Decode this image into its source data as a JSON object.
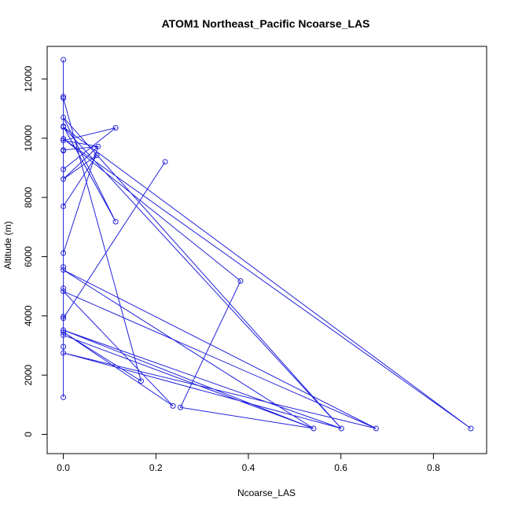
{
  "chart_data": {
    "type": "line",
    "title": "ATOM1 Northeast_Pacific Ncoarse_LAS",
    "xlabel": "Ncoarse_LAS",
    "ylabel": "Altitude (m)",
    "xlim": [
      -0.035,
      0.915
    ],
    "ylim": [
      -650,
      13100
    ],
    "x_ticks": [
      0.0,
      0.2,
      0.4,
      0.6,
      0.8
    ],
    "x_tick_labels": [
      "0.0",
      "0.2",
      "0.4",
      "0.6",
      "0.8"
    ],
    "y_ticks": [
      0,
      2000,
      4000,
      6000,
      8000,
      10000,
      12000
    ],
    "y_tick_labels": [
      "0",
      "2000",
      "4000",
      "6000",
      "8000",
      "10000",
      "12000"
    ],
    "grid": false,
    "legend": "none",
    "series_color": "#2222dd",
    "points": [
      {
        "x": 0.0,
        "y": 12650
      },
      {
        "x": 0.0,
        "y": 11400
      },
      {
        "x": 0.0,
        "y": 11350
      },
      {
        "x": 0.0,
        "y": 10700
      },
      {
        "x": 0.0,
        "y": 10400
      },
      {
        "x": 0.0,
        "y": 10380
      },
      {
        "x": 0.113,
        "y": 10350
      },
      {
        "x": 0.0,
        "y": 9980
      },
      {
        "x": 0.0,
        "y": 9920
      },
      {
        "x": 0.075,
        "y": 9720
      },
      {
        "x": 0.0,
        "y": 9600
      },
      {
        "x": 0.0,
        "y": 9580
      },
      {
        "x": 0.072,
        "y": 9420
      },
      {
        "x": 0.22,
        "y": 9200
      },
      {
        "x": 0.0,
        "y": 8950
      },
      {
        "x": 0.0,
        "y": 8620
      },
      {
        "x": 0.0,
        "y": 7700
      },
      {
        "x": 0.113,
        "y": 7180
      },
      {
        "x": 0.0,
        "y": 6120
      },
      {
        "x": 0.0,
        "y": 5650
      },
      {
        "x": 0.0,
        "y": 5550
      },
      {
        "x": 0.383,
        "y": 5180
      },
      {
        "x": 0.0,
        "y": 4930
      },
      {
        "x": 0.0,
        "y": 4830
      },
      {
        "x": 0.0,
        "y": 3980
      },
      {
        "x": 0.0,
        "y": 3920
      },
      {
        "x": 0.0,
        "y": 3520
      },
      {
        "x": 0.0,
        "y": 3450
      },
      {
        "x": 0.0,
        "y": 3350
      },
      {
        "x": 0.0,
        "y": 2960
      },
      {
        "x": 0.0,
        "y": 2750
      },
      {
        "x": 0.168,
        "y": 1800
      },
      {
        "x": 0.0,
        "y": 1250
      },
      {
        "x": 0.237,
        "y": 960
      },
      {
        "x": 0.253,
        "y": 910
      },
      {
        "x": 0.541,
        "y": 200
      },
      {
        "x": 0.601,
        "y": 200
      },
      {
        "x": 0.676,
        "y": 200
      },
      {
        "x": 0.881,
        "y": 200
      }
    ],
    "path": [
      [
        0.0,
        12650
      ],
      [
        0.0,
        1250
      ],
      [
        0.0,
        9580
      ],
      [
        0.0,
        8950
      ],
      [
        0.113,
        10350
      ],
      [
        0.0,
        9920
      ],
      [
        0.075,
        9720
      ],
      [
        0.0,
        8620
      ],
      [
        0.072,
        9420
      ],
      [
        0.0,
        7700
      ],
      [
        0.0,
        10400
      ],
      [
        0.113,
        7180
      ],
      [
        0.0,
        10700
      ],
      [
        0.601,
        200
      ],
      [
        0.0,
        10380
      ],
      [
        0.881,
        200
      ],
      [
        0.0,
        9980
      ],
      [
        0.383,
        5180
      ],
      [
        0.253,
        910
      ],
      [
        0.541,
        200
      ],
      [
        0.0,
        5550
      ],
      [
        0.676,
        200
      ],
      [
        0.0,
        4830
      ],
      [
        0.237,
        960
      ],
      [
        0.0,
        3450
      ],
      [
        0.168,
        1800
      ],
      [
        0.0,
        11350
      ],
      [
        0.0,
        6120
      ],
      [
        0.075,
        9720
      ],
      [
        0.0,
        9600
      ],
      [
        0.0,
        3920
      ],
      [
        0.22,
        9200
      ],
      [
        0.0,
        3920
      ],
      [
        0.0,
        3350
      ],
      [
        0.541,
        200
      ],
      [
        0.0,
        3520
      ],
      [
        0.601,
        200
      ],
      [
        0.0,
        2750
      ],
      [
        0.676,
        200
      ]
    ]
  }
}
